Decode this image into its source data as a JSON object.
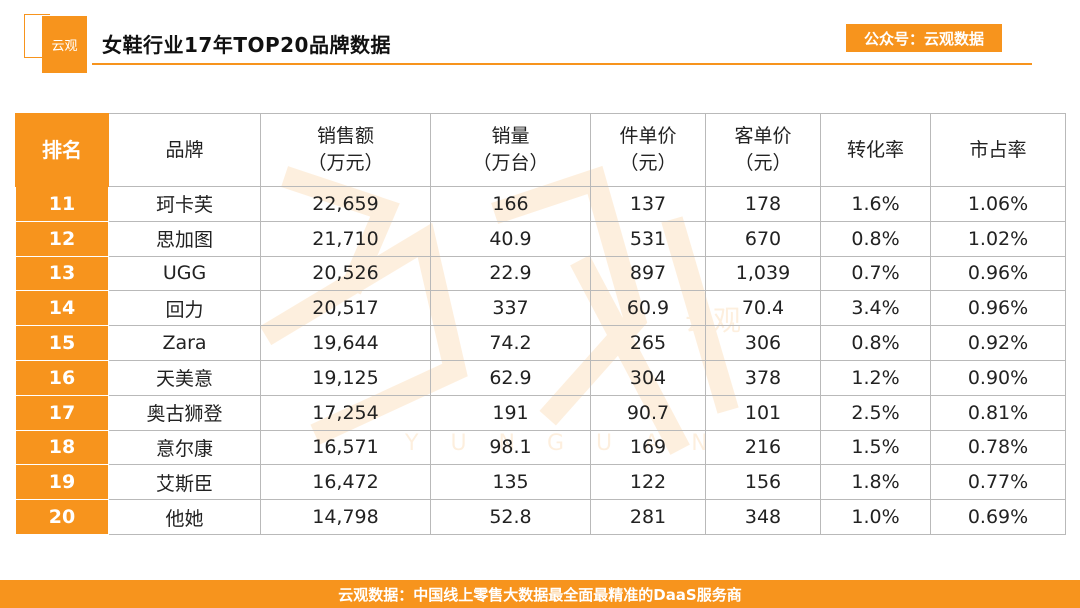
{
  "header": {
    "logo_text": "云观",
    "title": "女鞋行业17年TOP20品牌数据",
    "badge": "公众号：云观数据"
  },
  "table": {
    "columns": [
      {
        "line1": "排名",
        "line2": ""
      },
      {
        "line1": "品牌",
        "line2": ""
      },
      {
        "line1": "销售额",
        "line2": "（万元）"
      },
      {
        "line1": "销量",
        "line2": "（万台）"
      },
      {
        "line1": "件单价",
        "line2": "（元）"
      },
      {
        "line1": "客单价",
        "line2": "（元）"
      },
      {
        "line1": "转化率",
        "line2": ""
      },
      {
        "line1": "市占率",
        "line2": ""
      }
    ],
    "rows": [
      {
        "rank": "11",
        "brand": "珂卡芙",
        "sales": "22,659",
        "volume": "166",
        "unit_price": "137",
        "customer_price": "178",
        "conversion": "1.6%",
        "share": "1.06%"
      },
      {
        "rank": "12",
        "brand": "思加图",
        "sales": "21,710",
        "volume": "40.9",
        "unit_price": "531",
        "customer_price": "670",
        "conversion": "0.8%",
        "share": "1.02%"
      },
      {
        "rank": "13",
        "brand": "UGG",
        "sales": "20,526",
        "volume": "22.9",
        "unit_price": "897",
        "customer_price": "1,039",
        "conversion": "0.7%",
        "share": "0.96%"
      },
      {
        "rank": "14",
        "brand": "回力",
        "sales": "20,517",
        "volume": "337",
        "unit_price": "60.9",
        "customer_price": "70.4",
        "conversion": "3.4%",
        "share": "0.96%"
      },
      {
        "rank": "15",
        "brand": "Zara",
        "sales": "19,644",
        "volume": "74.2",
        "unit_price": "265",
        "customer_price": "306",
        "conversion": "0.8%",
        "share": "0.92%"
      },
      {
        "rank": "16",
        "brand": "天美意",
        "sales": "19,125",
        "volume": "62.9",
        "unit_price": "304",
        "customer_price": "378",
        "conversion": "1.2%",
        "share": "0.90%"
      },
      {
        "rank": "17",
        "brand": "奥古狮登",
        "sales": "17,254",
        "volume": "191",
        "unit_price": "90.7",
        "customer_price": "101",
        "conversion": "2.5%",
        "share": "0.81%"
      },
      {
        "rank": "18",
        "brand": "意尔康",
        "sales": "16,571",
        "volume": "98.1",
        "unit_price": "169",
        "customer_price": "216",
        "conversion": "1.5%",
        "share": "0.78%"
      },
      {
        "rank": "19",
        "brand": "艾斯臣",
        "sales": "16,472",
        "volume": "135",
        "unit_price": "122",
        "customer_price": "156",
        "conversion": "1.8%",
        "share": "0.77%"
      },
      {
        "rank": "20",
        "brand": "他她",
        "sales": "14,798",
        "volume": "52.8",
        "unit_price": "281",
        "customer_price": "348",
        "conversion": "1.0%",
        "share": "0.69%"
      }
    ]
  },
  "watermark": {
    "text": "云观",
    "letters": "YUNGUAN"
  },
  "footer": {
    "text": "云观数据：中国线上零售大数据最全面最精准的DaaS服务商"
  },
  "colors": {
    "accent": "#f7941d",
    "text": "#222222",
    "border": "#b9b9b9"
  }
}
